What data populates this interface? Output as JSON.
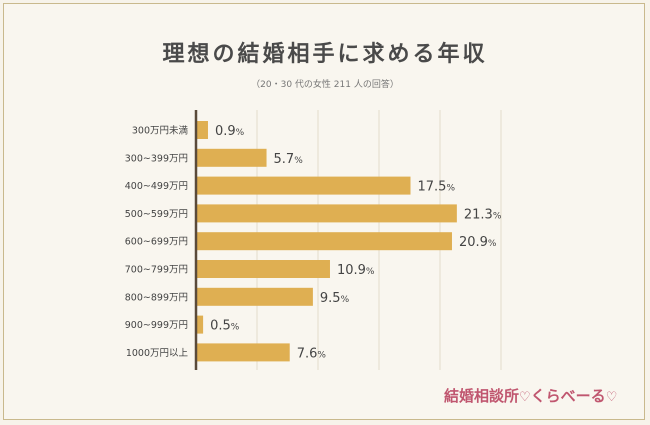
{
  "chart_data": {
    "type": "bar",
    "orientation": "horizontal",
    "title": "理想の結婚相手に求める年収",
    "subtitle": "（20・30 代の女性 211 人の回答）",
    "categories": [
      "300万円未満",
      "300~399万円",
      "400~499万円",
      "500~599万円",
      "600~699万円",
      "700~799万円",
      "800~899万円",
      "900~999万円",
      "1000万円以上"
    ],
    "values": [
      0.9,
      5.7,
      17.5,
      21.3,
      20.9,
      10.9,
      9.5,
      0.5,
      7.6
    ],
    "value_unit": "%",
    "xlim": [
      0,
      25
    ],
    "grid": true,
    "bar_color": "#dfaf52"
  },
  "branding": {
    "logo_text": "結婚相談所",
    "logo_suffix": "くらべーる",
    "logo_color": "#c0566f"
  }
}
